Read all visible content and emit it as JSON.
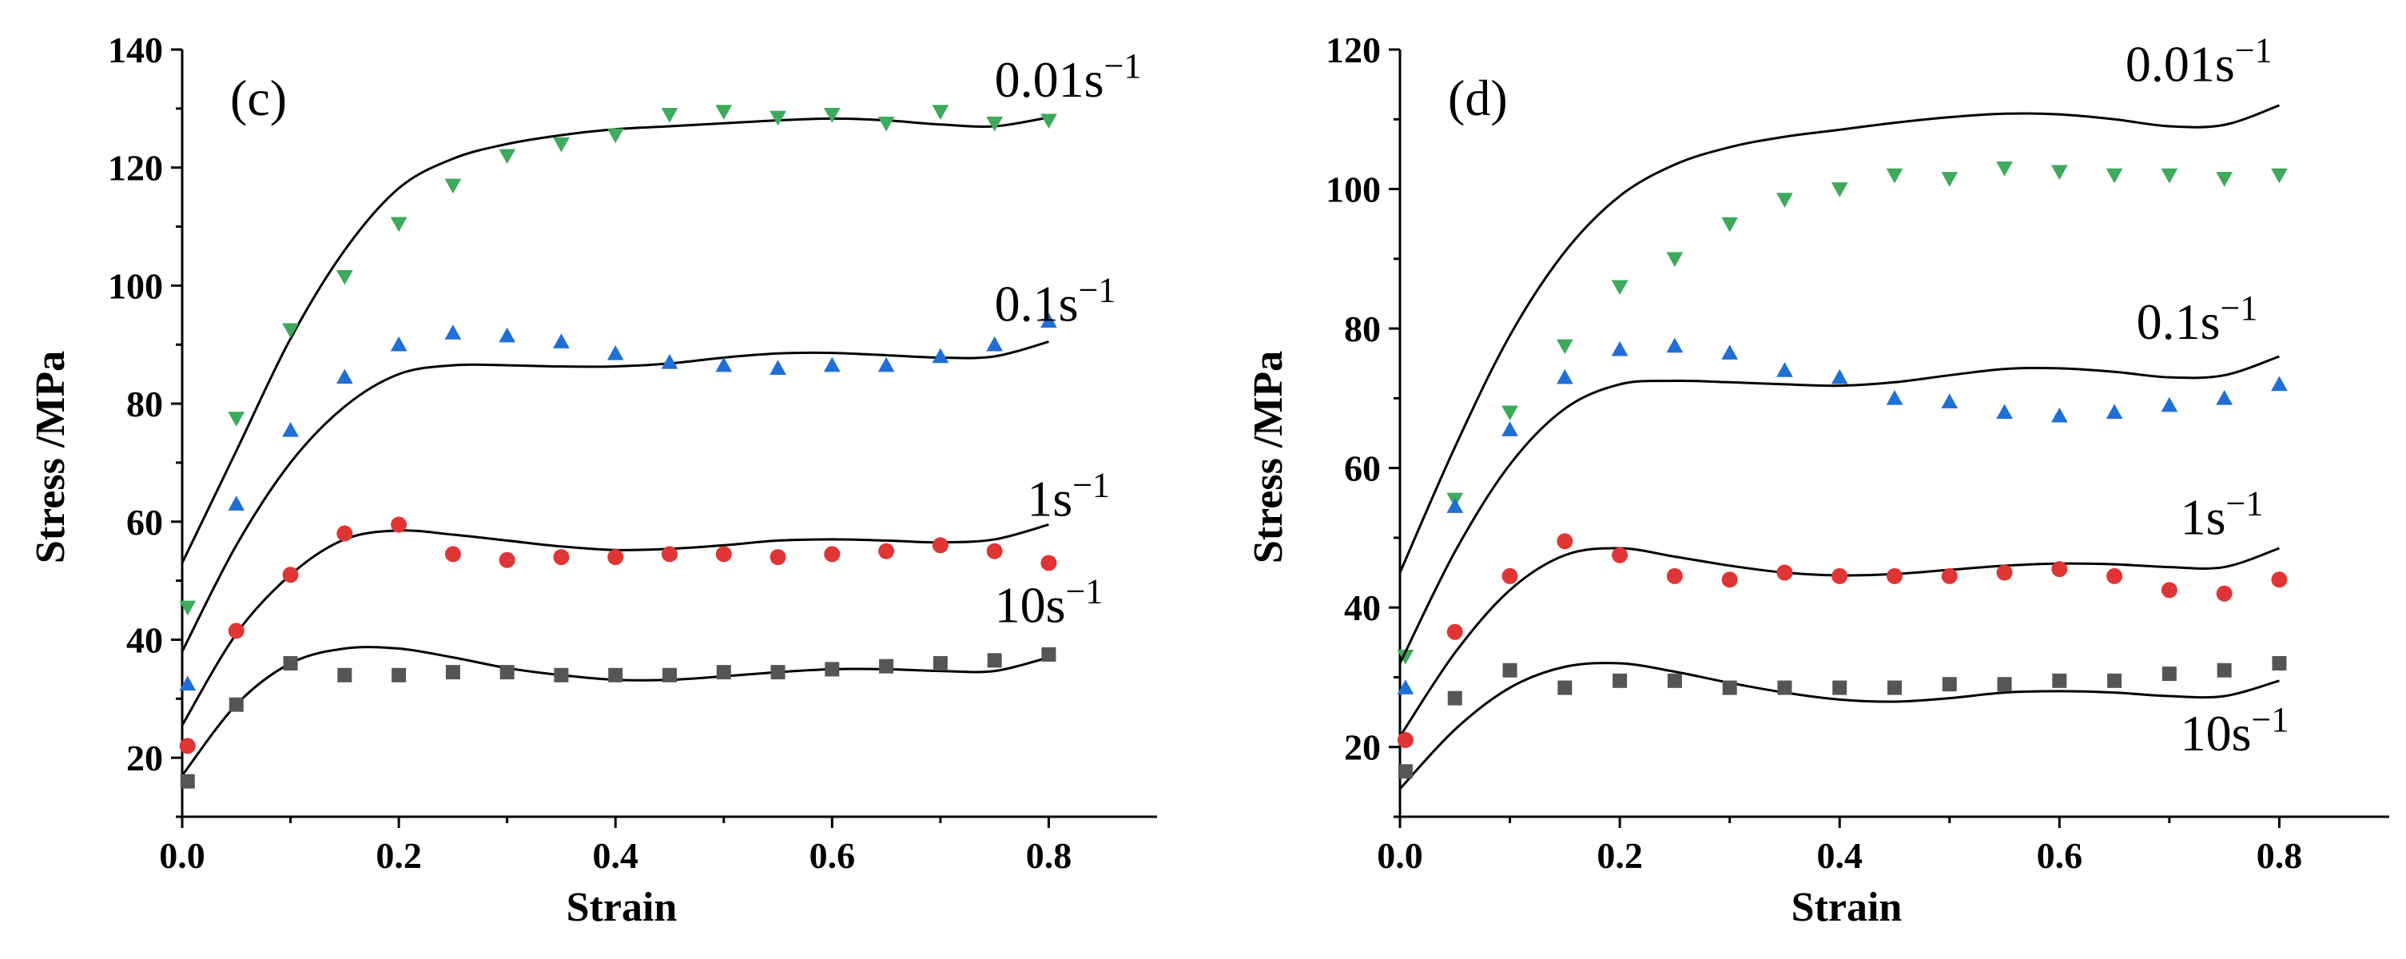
{
  "chart_data": [
    {
      "type": "scatter",
      "panel_label": "(c)",
      "xlabel": "Strain",
      "ylabel": "Stress /MPa",
      "xlim": [
        0,
        0.9
      ],
      "ylim": [
        10,
        140
      ],
      "xticks": [
        0.0,
        0.2,
        0.4,
        0.6,
        0.8
      ],
      "xtick_labels": [
        "0.0",
        "0.2",
        "0.4",
        "0.6",
        "0.8"
      ],
      "yticks": [
        20,
        40,
        60,
        80,
        100,
        120,
        140
      ],
      "ytick_labels": [
        "20",
        "40",
        "60",
        "80",
        "100",
        "120",
        "140"
      ],
      "series": [
        {
          "name": "0.01s⁻¹",
          "label_base": "0.01s",
          "label_exp": "−1",
          "marker": "triangle-down",
          "color": "#3daa5c",
          "label_x": 0.75,
          "label_y": 132,
          "x": [
            0.005,
            0.05,
            0.1,
            0.15,
            0.2,
            0.25,
            0.3,
            0.35,
            0.4,
            0.45,
            0.5,
            0.55,
            0.6,
            0.65,
            0.7,
            0.75,
            0.8
          ],
          "y": [
            45.5,
            77.5,
            92.5,
            101.5,
            110.5,
            117,
            122,
            124,
            125.5,
            129,
            129.5,
            128.5,
            129,
            127.5,
            129.5,
            127.5,
            128
          ],
          "fit_x": [
            0.0,
            0.05,
            0.1,
            0.15,
            0.2,
            0.25,
            0.3,
            0.35,
            0.4,
            0.45,
            0.5,
            0.55,
            0.6,
            0.65,
            0.7,
            0.75,
            0.8
          ],
          "fit_y": [
            53,
            72,
            91,
            106,
            116.5,
            121.5,
            124,
            125.5,
            126.5,
            127,
            127.5,
            128,
            128.3,
            128,
            127.3,
            127,
            128.5
          ]
        },
        {
          "name": "0.1s⁻¹",
          "label_base": "0.1s",
          "label_exp": "−1",
          "marker": "triangle-up",
          "color": "#1f6fd6",
          "label_x": 0.75,
          "label_y": 94,
          "x": [
            0.005,
            0.05,
            0.1,
            0.15,
            0.2,
            0.25,
            0.3,
            0.35,
            0.4,
            0.45,
            0.5,
            0.55,
            0.6,
            0.65,
            0.7,
            0.75,
            0.8
          ],
          "y": [
            32.5,
            63,
            75.5,
            84.5,
            90,
            92,
            91.5,
            90.5,
            88.5,
            87,
            86.5,
            86,
            86.5,
            86.5,
            88,
            90,
            94
          ],
          "fit_x": [
            0.0,
            0.05,
            0.1,
            0.15,
            0.2,
            0.25,
            0.3,
            0.35,
            0.4,
            0.45,
            0.5,
            0.55,
            0.6,
            0.65,
            0.7,
            0.75,
            0.8
          ],
          "fit_y": [
            38,
            56,
            70,
            79.5,
            85,
            86.5,
            86.5,
            86.3,
            86.3,
            86.8,
            87.8,
            88.5,
            88.6,
            88.2,
            87.8,
            88,
            90.5
          ]
        },
        {
          "name": "1s⁻¹",
          "label_base": "1s",
          "label_exp": "−1",
          "marker": "circle",
          "color": "#e03535",
          "label_x": 0.78,
          "label_y": 61,
          "x": [
            0.005,
            0.05,
            0.1,
            0.15,
            0.2,
            0.25,
            0.3,
            0.35,
            0.4,
            0.45,
            0.5,
            0.55,
            0.6,
            0.65,
            0.7,
            0.75,
            0.8
          ],
          "y": [
            22,
            41.5,
            51,
            58,
            59.5,
            54.5,
            53.5,
            54,
            54,
            54.5,
            54.5,
            54,
            54.5,
            55,
            56,
            55,
            53
          ],
          "fit_x": [
            0.0,
            0.05,
            0.1,
            0.15,
            0.2,
            0.25,
            0.3,
            0.35,
            0.4,
            0.45,
            0.5,
            0.55,
            0.6,
            0.65,
            0.7,
            0.75,
            0.8
          ],
          "fit_y": [
            25.5,
            41,
            51,
            57,
            58.5,
            57.8,
            56.8,
            55.8,
            55.2,
            55.4,
            56,
            56.8,
            57,
            56.8,
            56.5,
            57,
            59.5
          ]
        },
        {
          "name": "10s⁻¹",
          "label_base": "10s",
          "label_exp": "−1",
          "marker": "square",
          "color": "#555555",
          "label_x": 0.75,
          "label_y": 43,
          "x": [
            0.005,
            0.05,
            0.1,
            0.15,
            0.2,
            0.25,
            0.3,
            0.35,
            0.4,
            0.45,
            0.5,
            0.55,
            0.6,
            0.65,
            0.7,
            0.75,
            0.8
          ],
          "y": [
            16,
            29,
            36,
            34,
            34,
            34.5,
            34.5,
            34,
            34,
            34,
            34.5,
            34.5,
            35,
            35.5,
            36,
            36.5,
            37.5
          ],
          "fit_x": [
            0.0,
            0.05,
            0.1,
            0.15,
            0.2,
            0.25,
            0.3,
            0.35,
            0.4,
            0.45,
            0.5,
            0.55,
            0.6,
            0.65,
            0.7,
            0.75,
            0.8
          ],
          "fit_y": [
            17,
            29,
            36,
            38.5,
            38.5,
            37,
            35.2,
            34,
            33.2,
            33.2,
            33.8,
            34.5,
            35,
            35,
            34.7,
            34.7,
            37
          ]
        }
      ]
    },
    {
      "type": "scatter",
      "panel_label": "(d)",
      "xlabel": "Strain",
      "ylabel": "Stress /MPa",
      "xlim": [
        0,
        0.9
      ],
      "ylim": [
        10,
        120
      ],
      "xticks": [
        0.0,
        0.2,
        0.4,
        0.6,
        0.8
      ],
      "xtick_labels": [
        "0.0",
        "0.2",
        "0.4",
        "0.6",
        "0.8"
      ],
      "yticks": [
        20,
        40,
        60,
        80,
        100,
        120
      ],
      "ytick_labels": [
        "20",
        "40",
        "60",
        "80",
        "100",
        "120"
      ],
      "series": [
        {
          "name": "0.01s⁻¹",
          "label_base": "0.01s",
          "label_exp": "−1",
          "marker": "triangle-down",
          "color": "#3daa5c",
          "label_x": 0.66,
          "label_y": 115.5,
          "x": [
            0.005,
            0.05,
            0.1,
            0.15,
            0.2,
            0.25,
            0.3,
            0.35,
            0.4,
            0.45,
            0.5,
            0.55,
            0.6,
            0.65,
            0.7,
            0.75,
            0.8
          ],
          "y": [
            33,
            55.5,
            68,
            77.5,
            86,
            90,
            95,
            98.5,
            100,
            102,
            101.5,
            103,
            102.5,
            102,
            102,
            101.5,
            102
          ],
          "fit_x": [
            0.0,
            0.05,
            0.1,
            0.15,
            0.2,
            0.25,
            0.3,
            0.35,
            0.4,
            0.45,
            0.5,
            0.55,
            0.6,
            0.65,
            0.7,
            0.75,
            0.8
          ],
          "fit_y": [
            45,
            63,
            79,
            91,
            99,
            103.5,
            106,
            107.5,
            108.5,
            109.5,
            110.3,
            110.8,
            110.7,
            110,
            109,
            109.2,
            112
          ]
        },
        {
          "name": "0.1s⁻¹",
          "label_base": "0.1s",
          "label_exp": "−1",
          "marker": "triangle-up",
          "color": "#1f6fd6",
          "label_x": 0.67,
          "label_y": 78.5,
          "x": [
            0.005,
            0.05,
            0.1,
            0.15,
            0.2,
            0.25,
            0.3,
            0.35,
            0.4,
            0.45,
            0.5,
            0.55,
            0.6,
            0.65,
            0.7,
            0.75,
            0.8
          ],
          "y": [
            28.5,
            54.5,
            65.5,
            73,
            77,
            77.5,
            76.5,
            74,
            73,
            70,
            69.5,
            68,
            67.5,
            68,
            69,
            70,
            72
          ],
          "fit_x": [
            0.0,
            0.05,
            0.1,
            0.15,
            0.2,
            0.25,
            0.3,
            0.35,
            0.4,
            0.45,
            0.5,
            0.55,
            0.6,
            0.65,
            0.7,
            0.75,
            0.8
          ],
          "fit_y": [
            32,
            48,
            60.5,
            68.5,
            72,
            72.5,
            72.3,
            72,
            71.8,
            72.3,
            73.3,
            74.2,
            74.3,
            73.8,
            73,
            73.3,
            76
          ]
        },
        {
          "name": "1s⁻¹",
          "label_base": "1s",
          "label_exp": "−1",
          "marker": "circle",
          "color": "#e03535",
          "label_x": 0.71,
          "label_y": 50.5,
          "x": [
            0.005,
            0.05,
            0.1,
            0.15,
            0.2,
            0.25,
            0.3,
            0.35,
            0.4,
            0.45,
            0.5,
            0.55,
            0.6,
            0.65,
            0.7,
            0.75,
            0.8
          ],
          "y": [
            21,
            36.5,
            44.5,
            49.5,
            47.5,
            44.5,
            44,
            45,
            44.5,
            44.5,
            44.5,
            45,
            45.5,
            44.5,
            42.5,
            42,
            44
          ],
          "fit_x": [
            0.0,
            0.05,
            0.1,
            0.15,
            0.2,
            0.25,
            0.3,
            0.35,
            0.4,
            0.45,
            0.5,
            0.55,
            0.6,
            0.65,
            0.7,
            0.75,
            0.8
          ],
          "fit_y": [
            21.5,
            33.5,
            42.5,
            47.5,
            48.5,
            47.3,
            46,
            45,
            44.6,
            44.8,
            45.4,
            46,
            46.3,
            46.2,
            45.8,
            45.8,
            48.5
          ]
        },
        {
          "name": "10s⁻¹",
          "label_base": "10s",
          "label_exp": "−1",
          "marker": "square",
          "color": "#555555",
          "label_x": 0.71,
          "label_y": 19.5,
          "x": [
            0.005,
            0.05,
            0.1,
            0.15,
            0.2,
            0.25,
            0.3,
            0.35,
            0.4,
            0.45,
            0.5,
            0.55,
            0.6,
            0.65,
            0.7,
            0.75,
            0.8
          ],
          "y": [
            16.5,
            27,
            31,
            28.5,
            29.5,
            29.5,
            28.5,
            28.5,
            28.5,
            28.5,
            29,
            29,
            29.5,
            29.5,
            30.5,
            31,
            32
          ],
          "fit_x": [
            0.0,
            0.05,
            0.1,
            0.15,
            0.2,
            0.25,
            0.3,
            0.35,
            0.4,
            0.45,
            0.5,
            0.55,
            0.6,
            0.65,
            0.7,
            0.75,
            0.8
          ],
          "fit_y": [
            14,
            22.5,
            28.5,
            31.5,
            32,
            30.8,
            29.2,
            27.8,
            26.8,
            26.5,
            27,
            27.8,
            28,
            27.8,
            27.3,
            27.3,
            29.5
          ]
        }
      ]
    }
  ]
}
